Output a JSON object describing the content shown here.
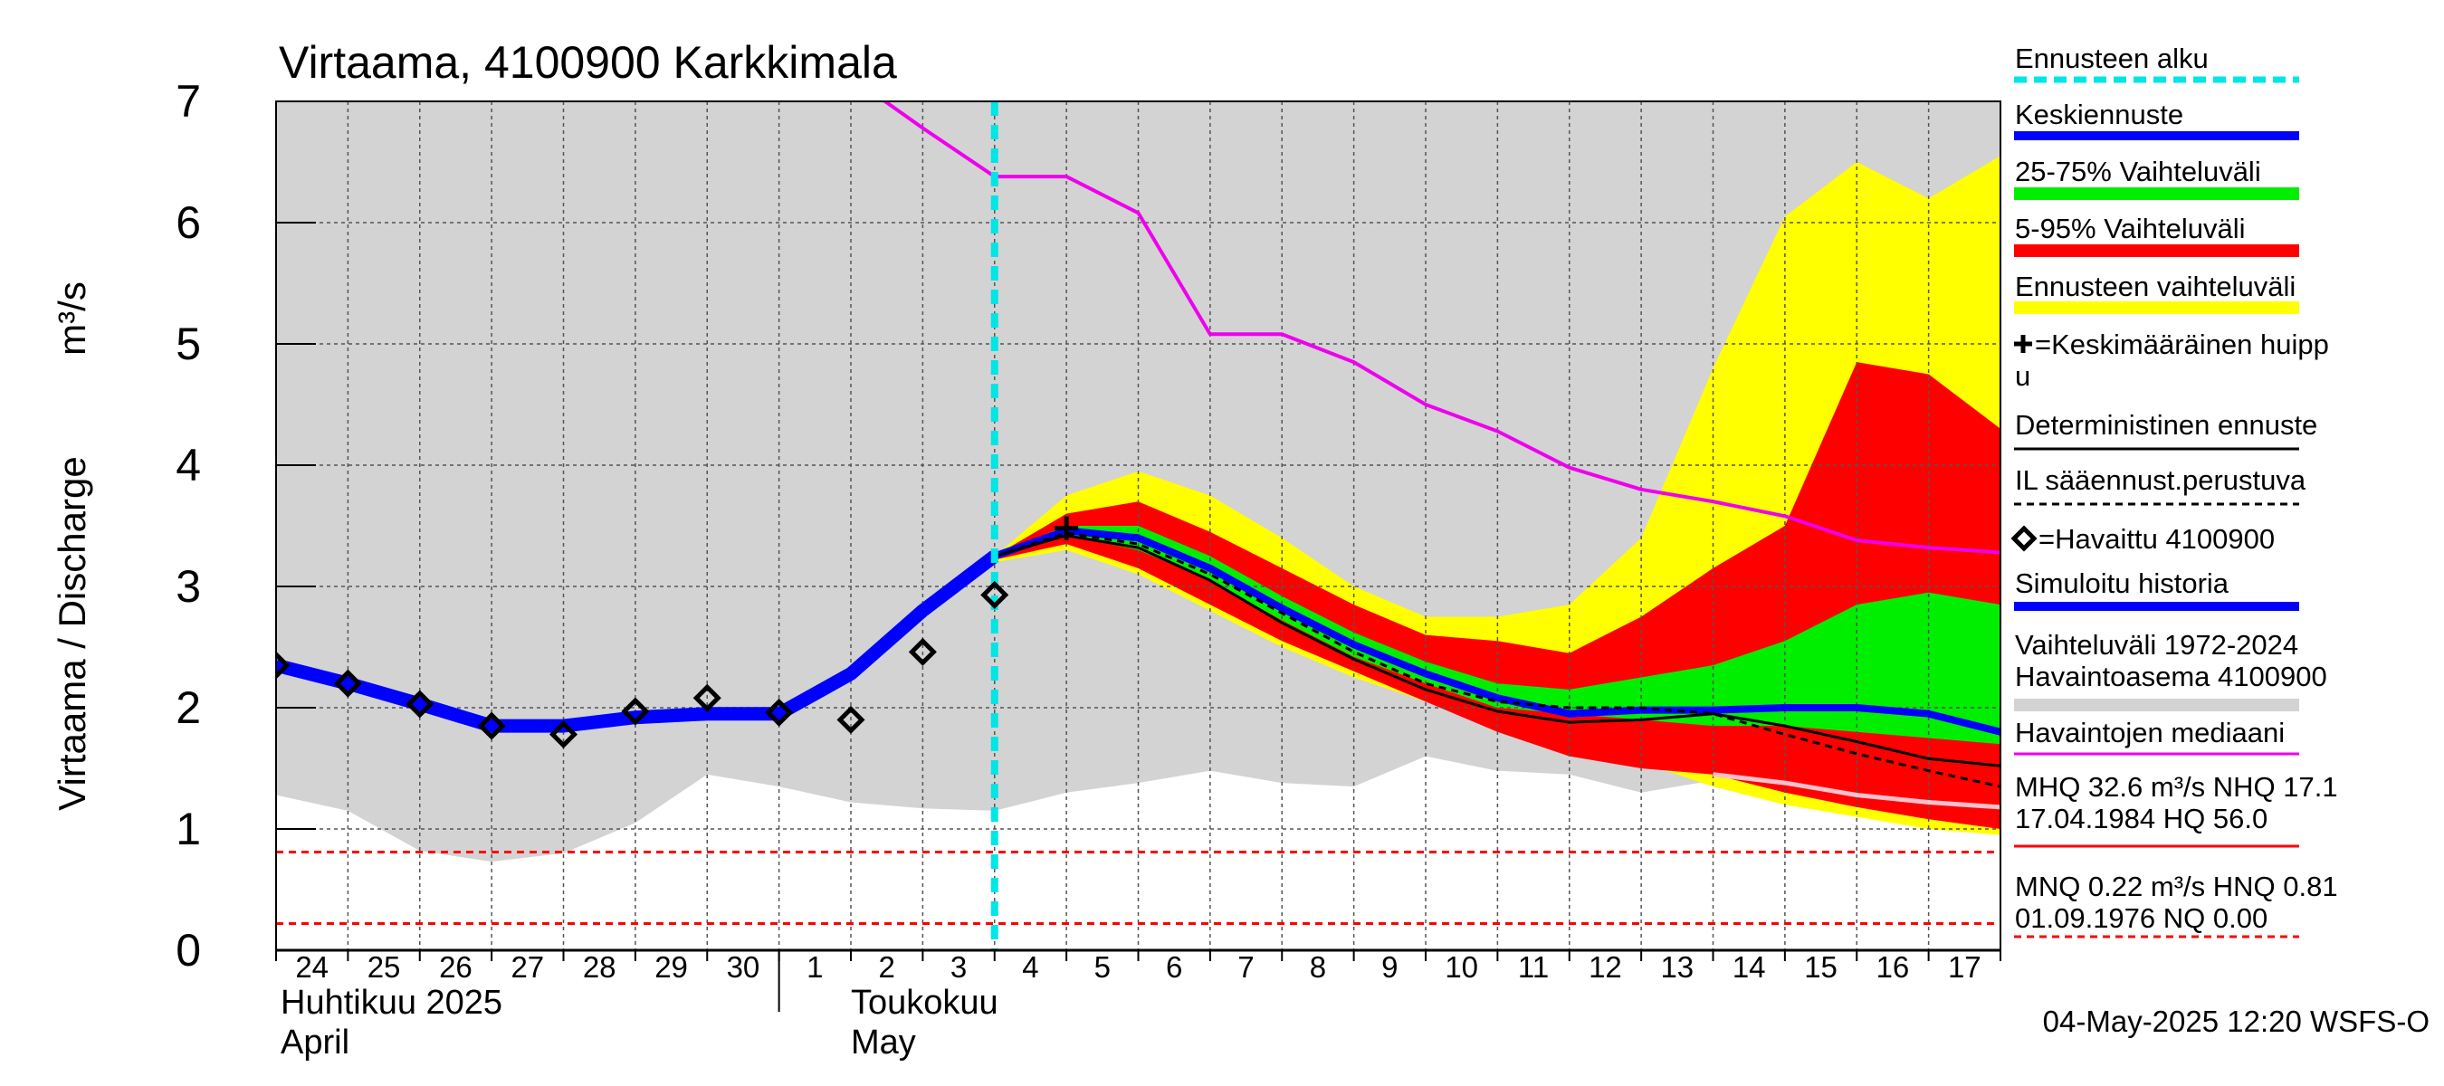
{
  "chart_data": {
    "type": "line",
    "title": "Virtaama, 4100900 Karkkimala",
    "ylabel": "Virtaama / Discharge",
    "yunit": "m³/s",
    "ylim": [
      0,
      7
    ],
    "yticks": [
      "0",
      "1",
      "2",
      "3",
      "4",
      "5",
      "6",
      "7"
    ],
    "xlim": [
      "2025-04-24",
      "2025-05-18"
    ],
    "day_labels": [
      "24",
      "25",
      "26",
      "27",
      "28",
      "29",
      "30",
      "1",
      "2",
      "3",
      "4",
      "5",
      "6",
      "7",
      "8",
      "9",
      "10",
      "11",
      "12",
      "13",
      "14",
      "15",
      "16",
      "17"
    ],
    "month_labels": [
      {
        "fi": "Huhtikuu  2025",
        "en": "April"
      },
      {
        "fi": "Toukokuu",
        "en": "May"
      }
    ],
    "forecast_start": "2025-05-04",
    "grid": true,
    "legend_position": "right",
    "bands": [
      {
        "name": "Vaihteluväli 1972-2024 Havaintoasema 4100900",
        "color": "#d3d3d3",
        "x": [
          "2025-04-24",
          "2025-04-25",
          "2025-04-26",
          "2025-04-27",
          "2025-04-28",
          "2025-04-29",
          "2025-04-30",
          "2025-05-01",
          "2025-05-02",
          "2025-05-03",
          "2025-05-04",
          "2025-05-05",
          "2025-05-06",
          "2025-05-07",
          "2025-05-08",
          "2025-05-09",
          "2025-05-10",
          "2025-05-11",
          "2025-05-12",
          "2025-05-13",
          "2025-05-14",
          "2025-05-15",
          "2025-05-16",
          "2025-05-17",
          "2025-05-18"
        ],
        "low": [
          1.28,
          1.15,
          0.82,
          0.73,
          0.8,
          1.05,
          1.45,
          1.35,
          1.22,
          1.17,
          1.15,
          1.3,
          1.38,
          1.48,
          1.38,
          1.35,
          1.6,
          1.48,
          1.45,
          1.3,
          1.4,
          1.2,
          1.12,
          1.05,
          1.0
        ],
        "high": [
          7,
          7,
          7,
          7,
          7,
          7,
          7,
          7,
          7,
          7,
          7,
          7,
          7,
          7,
          7,
          7,
          7,
          7,
          7,
          7,
          7,
          7,
          7,
          7,
          7
        ]
      },
      {
        "name": "Ennusteen vaihteluväli",
        "color": "#ffff00",
        "x": [
          "2025-05-04",
          "2025-05-05",
          "2025-05-06",
          "2025-05-07",
          "2025-05-08",
          "2025-05-09",
          "2025-05-10",
          "2025-05-11",
          "2025-05-12",
          "2025-05-13",
          "2025-05-14",
          "2025-05-15",
          "2025-05-16",
          "2025-05-17",
          "2025-05-18"
        ],
        "low": [
          3.2,
          3.3,
          3.1,
          2.8,
          2.5,
          2.25,
          2.05,
          1.85,
          1.7,
          1.55,
          1.35,
          1.2,
          1.1,
          1.0,
          0.95
        ],
        "high": [
          3.25,
          3.75,
          3.95,
          3.75,
          3.4,
          3.0,
          2.75,
          2.75,
          2.85,
          3.4,
          4.8,
          6.05,
          6.5,
          6.2,
          6.55
        ]
      },
      {
        "name": "5-95% Vaihteluväli",
        "color": "#ff0000",
        "x": [
          "2025-05-04",
          "2025-05-05",
          "2025-05-06",
          "2025-05-07",
          "2025-05-08",
          "2025-05-09",
          "2025-05-10",
          "2025-05-11",
          "2025-05-12",
          "2025-05-13",
          "2025-05-14",
          "2025-05-15",
          "2025-05-16",
          "2025-05-17",
          "2025-05-18"
        ],
        "low": [
          3.22,
          3.35,
          3.15,
          2.85,
          2.55,
          2.3,
          2.05,
          1.8,
          1.6,
          1.5,
          1.45,
          1.3,
          1.18,
          1.08,
          1.0
        ],
        "high": [
          3.25,
          3.6,
          3.7,
          3.45,
          3.15,
          2.85,
          2.6,
          2.55,
          2.45,
          2.75,
          3.15,
          3.5,
          4.85,
          4.75,
          4.3
        ]
      },
      {
        "name": "25-75% Vaihteluväli",
        "color": "#00ee00",
        "x": [
          "2025-05-04",
          "2025-05-05",
          "2025-05-06",
          "2025-05-07",
          "2025-05-08",
          "2025-05-09",
          "2025-05-10",
          "2025-05-11",
          "2025-05-12",
          "2025-05-13",
          "2025-05-14",
          "2025-05-15",
          "2025-05-16",
          "2025-05-17",
          "2025-05-18"
        ],
        "low": [
          3.24,
          3.42,
          3.3,
          3.05,
          2.72,
          2.42,
          2.2,
          2.0,
          1.95,
          1.9,
          1.85,
          1.85,
          1.8,
          1.75,
          1.7
        ],
        "high": [
          3.26,
          3.5,
          3.5,
          3.25,
          2.92,
          2.62,
          2.38,
          2.2,
          2.15,
          2.25,
          2.35,
          2.55,
          2.85,
          2.95,
          2.85
        ]
      }
    ],
    "series": [
      {
        "name": "Simuloitu historia",
        "color": "#0000ff",
        "x": [
          "2025-04-24",
          "2025-04-25",
          "2025-04-26",
          "2025-04-27",
          "2025-04-28",
          "2025-04-29",
          "2025-04-30",
          "2025-05-01",
          "2025-05-02",
          "2025-05-03",
          "2025-05-04"
        ],
        "y": [
          2.35,
          2.2,
          2.03,
          1.85,
          1.85,
          1.92,
          1.95,
          1.95,
          2.28,
          2.8,
          3.25
        ]
      },
      {
        "name": "Keskiennuste",
        "color": "#0000ff",
        "x": [
          "2025-05-04",
          "2025-05-05",
          "2025-05-06",
          "2025-05-07",
          "2025-05-08",
          "2025-05-09",
          "2025-05-10",
          "2025-05-11",
          "2025-05-12",
          "2025-05-13",
          "2025-05-14",
          "2025-05-15",
          "2025-05-16",
          "2025-05-17",
          "2025-05-18"
        ],
        "y": [
          3.25,
          3.46,
          3.4,
          3.15,
          2.82,
          2.52,
          2.28,
          2.08,
          1.95,
          1.98,
          1.98,
          2.0,
          2.0,
          1.95,
          1.8
        ]
      },
      {
        "name": "Deterministinen ennuste",
        "color": "#000000",
        "x": [
          "2025-05-04",
          "2025-05-05",
          "2025-05-06",
          "2025-05-07",
          "2025-05-08",
          "2025-05-09",
          "2025-05-10",
          "2025-05-11",
          "2025-05-12",
          "2025-05-13",
          "2025-05-14",
          "2025-05-15",
          "2025-05-16",
          "2025-05-17",
          "2025-05-18"
        ],
        "y": [
          3.25,
          3.42,
          3.32,
          3.05,
          2.7,
          2.4,
          2.15,
          1.97,
          1.88,
          1.9,
          1.95,
          1.85,
          1.72,
          1.58,
          1.52
        ]
      },
      {
        "name": "IL sääennust.perustuva",
        "color": "#000000",
        "dashed": true,
        "x": [
          "2025-05-04",
          "2025-05-05",
          "2025-05-06",
          "2025-05-07",
          "2025-05-08",
          "2025-05-09",
          "2025-05-10",
          "2025-05-11",
          "2025-05-12",
          "2025-05-13",
          "2025-05-14",
          "2025-05-15",
          "2025-05-16",
          "2025-05-17",
          "2025-05-18"
        ],
        "y": [
          3.25,
          3.44,
          3.35,
          3.1,
          2.78,
          2.46,
          2.2,
          2.05,
          2.0,
          2.0,
          1.95,
          1.78,
          1.62,
          1.48,
          1.35
        ]
      },
      {
        "name": "Havaintojen mediaani",
        "color": "#ee00ee",
        "x": [
          "2025-05-02",
          "2025-05-03",
          "2025-05-04",
          "2025-05-05",
          "2025-05-06",
          "2025-05-07",
          "2025-05-08",
          "2025-05-09",
          "2025-05-10",
          "2025-05-11",
          "2025-05-12",
          "2025-05-13",
          "2025-05-14",
          "2025-05-15",
          "2025-05-16",
          "2025-05-17",
          "2025-05-18"
        ],
        "y": [
          7.2,
          6.78,
          6.38,
          6.38,
          6.08,
          5.08,
          5.08,
          4.85,
          4.5,
          4.28,
          3.98,
          3.8,
          3.7,
          3.58,
          3.38,
          3.32,
          3.28
        ]
      },
      {
        "name": "",
        "color": "#ffc0cb",
        "x": [
          "2025-05-14",
          "2025-05-15",
          "2025-05-16",
          "2025-05-17",
          "2025-05-18"
        ],
        "y": [
          1.45,
          1.38,
          1.28,
          1.22,
          1.18
        ]
      }
    ],
    "observed": {
      "name": "=Havaittu 4100900",
      "x": [
        "2025-04-24",
        "2025-04-25",
        "2025-04-26",
        "2025-04-27",
        "2025-04-28",
        "2025-04-29",
        "2025-04-30",
        "2025-05-01",
        "2025-05-02",
        "2025-05-03",
        "2025-05-04"
      ],
      "y": [
        2.35,
        2.2,
        2.03,
        1.85,
        1.78,
        1.97,
        2.08,
        1.96,
        1.9,
        2.46,
        2.93
      ]
    },
    "mean_peak": {
      "x": "2025-05-05",
      "y": 3.48
    },
    "hlines": [
      {
        "y": 0.81,
        "color": "#ff0000",
        "dashed": true
      },
      {
        "y": 0.22,
        "color": "#ff0000",
        "dashed": true
      }
    ]
  },
  "legend": [
    {
      "label": "Ennusteen alku",
      "color": "#00e5e5",
      "style": "dashed"
    },
    {
      "label": "Keskiennuste",
      "color": "#0000ff",
      "style": "line"
    },
    {
      "label": "25-75% Vaihteluväli",
      "color": "#00ee00",
      "style": "thick"
    },
    {
      "label": "5-95% Vaihteluväli",
      "color": "#ff0000",
      "style": "thick"
    },
    {
      "label": "Ennusteen vaihteluväli",
      "color": "#ffff00",
      "style": "thick"
    },
    {
      "label": "=Keskimääräinen huipp",
      "label2": "u",
      "color": "#000000",
      "style": "plus"
    },
    {
      "label": "Deterministinen ennuste",
      "color": "#000000",
      "style": "thin"
    },
    {
      "label": "IL sääennust.perustuva",
      "color": "#000000",
      "style": "thindash"
    },
    {
      "label": "=Havaittu 4100900",
      "color": "#000000",
      "style": "diamond"
    },
    {
      "label": "Simuloitu historia",
      "color": "#0000ff",
      "style": "line"
    },
    {
      "label": "Vaihteluväli 1972-2024",
      "label2": " Havaintoasema 4100900",
      "color": "#d3d3d3",
      "style": "thick"
    },
    {
      "label": "Havaintojen mediaani",
      "color": "#ee00ee",
      "style": "thin"
    },
    {
      "label": "MHQ 32.6 m³/s NHQ 17.1",
      "label2": "17.04.1984 HQ 56.0",
      "color": "#ff0000",
      "style": "thin"
    },
    {
      "label": "MNQ 0.22 m³/s HNQ 0.81",
      "label2": "01.09.1976 NQ 0.00",
      "color": "#ff0000",
      "style": "thindash"
    }
  ],
  "footer": "04-May-2025 12:20 WSFS-O"
}
